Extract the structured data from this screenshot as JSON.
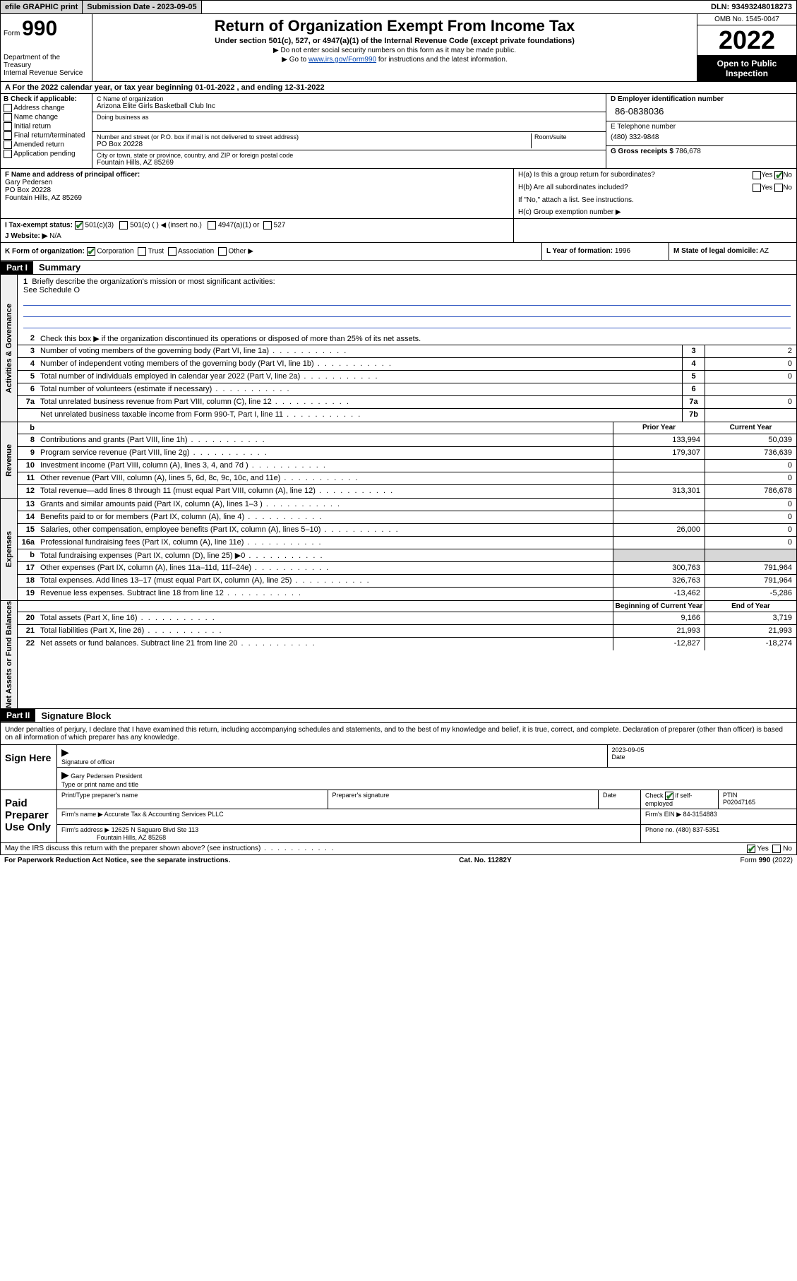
{
  "topbar": {
    "efile": "efile GRAPHIC print",
    "submission_label": "Submission Date - 2023-09-05",
    "dln_label": "DLN: 93493248018273"
  },
  "header": {
    "form_prefix": "Form",
    "form_no": "990",
    "dept": "Department of the Treasury",
    "irs": "Internal Revenue Service",
    "title": "Return of Organization Exempt From Income Tax",
    "sub1": "Under section 501(c), 527, or 4947(a)(1) of the Internal Revenue Code (except private foundations)",
    "sub2": "▶ Do not enter social security numbers on this form as it may be made public.",
    "sub3_pre": "▶ Go to ",
    "sub3_link": "www.irs.gov/Form990",
    "sub3_post": " for instructions and the latest information.",
    "omb": "OMB No. 1545-0047",
    "year": "2022",
    "open": "Open to Public Inspection"
  },
  "rowA": "A For the 2022 calendar year, or tax year beginning 01-01-2022    , and ending 12-31-2022",
  "B": {
    "label": "B Check if applicable:",
    "opts": [
      "Address change",
      "Name change",
      "Initial return",
      "Final return/terminated",
      "Amended return",
      "Application pending"
    ]
  },
  "C": {
    "name_label": "C Name of organization",
    "name": "Arizona Elite Girls Basketball Club Inc",
    "dba_label": "Doing business as",
    "dba": "",
    "street_label": "Number and street (or P.O. box if mail is not delivered to street address)",
    "room_label": "Room/suite",
    "street": "PO Box 20228",
    "city_label": "City or town, state or province, country, and ZIP or foreign postal code",
    "city": "Fountain Hills, AZ  85269"
  },
  "D": {
    "label": "D Employer identification number",
    "ein": "86-0838036"
  },
  "E": {
    "label": "E Telephone number",
    "phone": "(480) 332-9848"
  },
  "G": {
    "label": "G Gross receipts $",
    "val": "786,678"
  },
  "F": {
    "label": "F Name and address of principal officer:",
    "name": "Gary Pedersen",
    "addr1": "PO Box 20228",
    "addr2": "Fountain Hills, AZ  85269"
  },
  "H": {
    "a": "H(a)  Is this a group return for subordinates?",
    "a_yes": "Yes",
    "a_no": "No",
    "b": "H(b)  Are all subordinates included?",
    "b_yes": "Yes",
    "b_no": "No",
    "b_note": "If \"No,\" attach a list. See instructions.",
    "c": "H(c)  Group exemption number ▶"
  },
  "I": {
    "label": "I   Tax-exempt status:",
    "o1": "501(c)(3)",
    "o2": "501(c) (   ) ◀ (insert no.)",
    "o3": "4947(a)(1) or",
    "o4": "527"
  },
  "J": {
    "label": "J   Website: ▶",
    "val": "N/A"
  },
  "K": {
    "label": "K Form of organization:",
    "o1": "Corporation",
    "o2": "Trust",
    "o3": "Association",
    "o4": "Other ▶"
  },
  "L": {
    "label": "L Year of formation:",
    "val": "1996"
  },
  "M": {
    "label": "M State of legal domicile:",
    "val": "AZ"
  },
  "part1": {
    "hdr": "Part I",
    "title": "Summary"
  },
  "summary": {
    "governance": {
      "l1": "Briefly describe the organization's mission or most significant activities:",
      "l1a": "See Schedule O",
      "l2": "Check this box ▶        if the organization discontinued its operations or disposed of more than 25% of its net assets.",
      "l3": "Number of voting members of the governing body (Part VI, line 1a)",
      "l3v": "2",
      "l4": "Number of independent voting members of the governing body (Part VI, line 1b)",
      "l4v": "0",
      "l5": "Total number of individuals employed in calendar year 2022 (Part V, line 2a)",
      "l5v": "0",
      "l6": "Total number of volunteers (estimate if necessary)",
      "l6v": "",
      "l7a": "Total unrelated business revenue from Part VIII, column (C), line 12",
      "l7av": "0",
      "l7b": "Net unrelated business taxable income from Form 990-T, Part I, line 11",
      "l7bv": ""
    },
    "cols": {
      "prior": "Prior Year",
      "current": "Current Year"
    },
    "revenue": [
      {
        "n": "8",
        "d": "Contributions and grants (Part VIII, line 1h)",
        "p": "133,994",
        "c": "50,039"
      },
      {
        "n": "9",
        "d": "Program service revenue (Part VIII, line 2g)",
        "p": "179,307",
        "c": "736,639"
      },
      {
        "n": "10",
        "d": "Investment income (Part VIII, column (A), lines 3, 4, and 7d )",
        "p": "",
        "c": "0"
      },
      {
        "n": "11",
        "d": "Other revenue (Part VIII, column (A), lines 5, 6d, 8c, 9c, 10c, and 11e)",
        "p": "",
        "c": "0"
      },
      {
        "n": "12",
        "d": "Total revenue—add lines 8 through 11 (must equal Part VIII, column (A), line 12)",
        "p": "313,301",
        "c": "786,678"
      }
    ],
    "expenses": [
      {
        "n": "13",
        "d": "Grants and similar amounts paid (Part IX, column (A), lines 1–3 )",
        "p": "",
        "c": "0"
      },
      {
        "n": "14",
        "d": "Benefits paid to or for members (Part IX, column (A), line 4)",
        "p": "",
        "c": "0"
      },
      {
        "n": "15",
        "d": "Salaries, other compensation, employee benefits (Part IX, column (A), lines 5–10)",
        "p": "26,000",
        "c": "0"
      },
      {
        "n": "16a",
        "d": "Professional fundraising fees (Part IX, column (A), line 11e)",
        "p": "",
        "c": "0"
      },
      {
        "n": "b",
        "d": "Total fundraising expenses (Part IX, column (D), line 25) ▶0",
        "p": "shade",
        "c": "shade"
      },
      {
        "n": "17",
        "d": "Other expenses (Part IX, column (A), lines 11a–11d, 11f–24e)",
        "p": "300,763",
        "c": "791,964"
      },
      {
        "n": "18",
        "d": "Total expenses. Add lines 13–17 (must equal Part IX, column (A), line 25)",
        "p": "326,763",
        "c": "791,964"
      },
      {
        "n": "19",
        "d": "Revenue less expenses. Subtract line 18 from line 12",
        "p": "-13,462",
        "c": "-5,286"
      }
    ],
    "netcols": {
      "begin": "Beginning of Current Year",
      "end": "End of Year"
    },
    "net": [
      {
        "n": "20",
        "d": "Total assets (Part X, line 16)",
        "p": "9,166",
        "c": "3,719"
      },
      {
        "n": "21",
        "d": "Total liabilities (Part X, line 26)",
        "p": "21,993",
        "c": "21,993"
      },
      {
        "n": "22",
        "d": "Net assets or fund balances. Subtract line 21 from line 20",
        "p": "-12,827",
        "c": "-18,274"
      }
    ]
  },
  "part2": {
    "hdr": "Part II",
    "title": "Signature Block"
  },
  "penalty": "Under penalties of perjury, I declare that I have examined this return, including accompanying schedules and statements, and to the best of my knowledge and belief, it is true, correct, and complete. Declaration of preparer (other than officer) is based on all information of which preparer has any knowledge.",
  "sign": {
    "here": "Sign Here",
    "sig_of": "Signature of officer",
    "date": "Date",
    "date_val": "2023-09-05",
    "name": "Gary Pedersen  President",
    "type": "Type or print name and title"
  },
  "paid": {
    "label": "Paid Preparer Use Only",
    "h1": "Print/Type preparer's name",
    "h2": "Preparer's signature",
    "h3": "Date",
    "h4a": "Check",
    "h4b": "if self-employed",
    "h5": "PTIN",
    "ptin": "P02047165",
    "firm_l": "Firm's name    ▶",
    "firm": "Accurate Tax & Accounting Services PLLC",
    "ein_l": "Firm's EIN ▶",
    "ein": "84-3154883",
    "addr_l": "Firm's address ▶",
    "addr1": "12625 N Saguaro Blvd Ste 113",
    "addr2": "Fountain Hills, AZ  85268",
    "phone_l": "Phone no.",
    "phone": "(480) 837-5351"
  },
  "footer": {
    "discuss": "May the IRS discuss this return with the preparer shown above? (see instructions)",
    "yes": "Yes",
    "no": "No",
    "pra": "For Paperwork Reduction Act Notice, see the separate instructions.",
    "cat": "Cat. No. 11282Y",
    "form": "Form 990 (2022)"
  },
  "colors": {
    "link": "#0645ad",
    "ruled": "#3a5fc4",
    "shade": "#d7d7d7",
    "check": "#2a7a2a"
  }
}
